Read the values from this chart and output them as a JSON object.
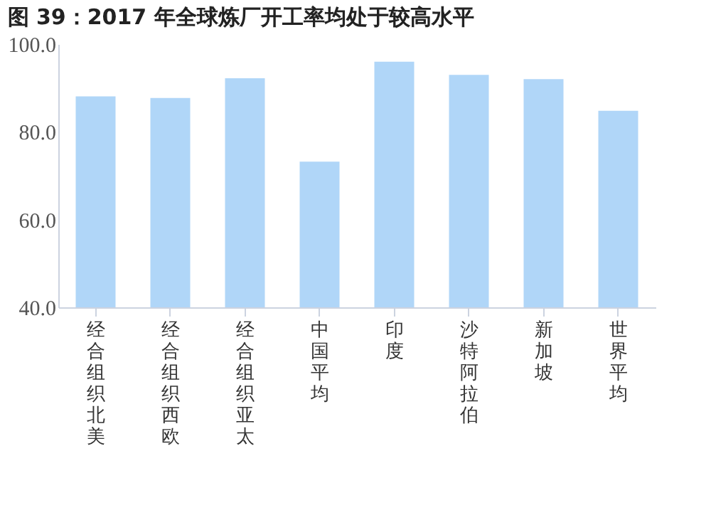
{
  "chart_data": {
    "type": "bar",
    "title": "图 39：2017 年全球炼厂开工率均处于较高水平",
    "categories": [
      "经合组织北美",
      "经合组织西欧",
      "经合组织亚太",
      "中国平均",
      "印度",
      "沙特阿拉伯",
      "新加坡",
      "世界平均"
    ],
    "values": [
      88.1,
      87.7,
      92.2,
      73.2,
      96.0,
      93.0,
      92.0,
      84.8
    ],
    "color": "#b0d6f8",
    "ylim": [
      40,
      100
    ],
    "yticks": [
      {
        "value": 40,
        "label": "40.0"
      },
      {
        "value": 60,
        "label": "60.0"
      },
      {
        "value": 80,
        "label": "80.0"
      },
      {
        "value": 100,
        "label": "100.0"
      }
    ],
    "grid": false
  }
}
